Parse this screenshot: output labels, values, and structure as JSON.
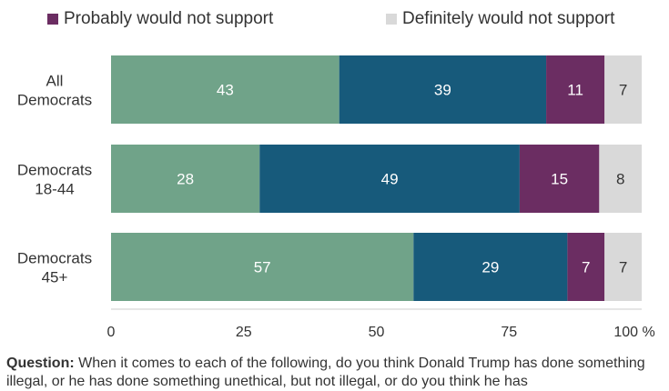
{
  "legend": [
    {
      "name": "Probably would not support",
      "color": "#6b2d62"
    },
    {
      "name": "Definitely would not support",
      "color": "#d9d9d9"
    }
  ],
  "chart_data": {
    "type": "bar",
    "orientation": "horizontal",
    "stacked": true,
    "categories": [
      [
        "All",
        "Democrats"
      ],
      [
        "Democrats",
        "18-44"
      ],
      [
        "Democrats",
        "45+"
      ]
    ],
    "series": [
      {
        "values": [
          43,
          28,
          57
        ],
        "color": "#70a389"
      },
      {
        "values": [
          39,
          49,
          29
        ],
        "color": "#175a7b"
      },
      {
        "name": "Probably would not support",
        "values": [
          11,
          15,
          7
        ],
        "color": "#6b2d62"
      },
      {
        "name": "Definitely would not support",
        "values": [
          7,
          8,
          7
        ],
        "color": "#d9d9d9"
      }
    ],
    "xlim": [
      0,
      100
    ],
    "xticks": [
      0,
      25,
      50,
      75,
      100
    ],
    "xtick_labels": [
      "0",
      "25",
      "50",
      "75",
      "100 %"
    ],
    "grid": false,
    "legend_position": "top"
  },
  "footnote": {
    "label": "Question:",
    "text": " When it comes to each of the following, do you think Donald Trump has done something illegal, or he has done something unethical, but not illegal, or do you think he has"
  }
}
